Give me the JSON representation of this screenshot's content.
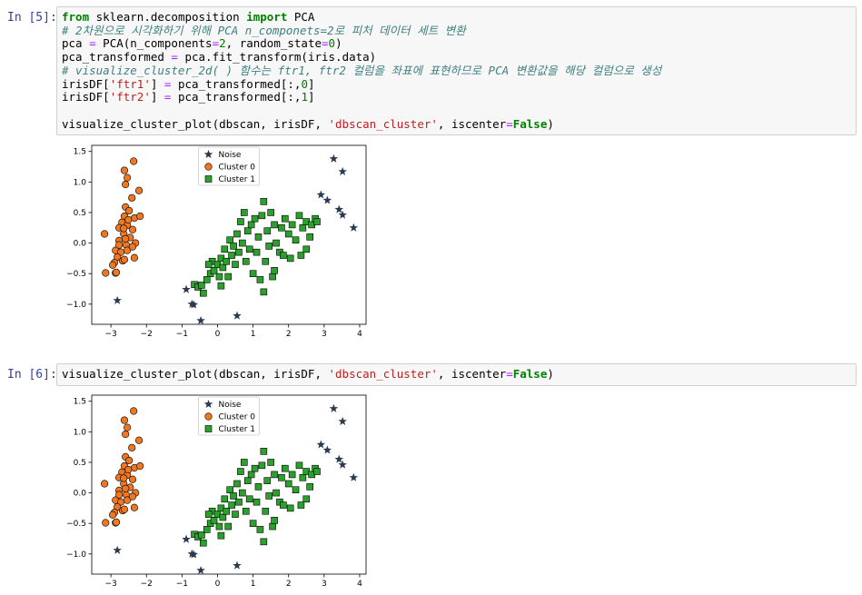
{
  "cells": [
    {
      "prompt": "In [5]:",
      "code": "from sklearn.decomposition import PCA\n# 2차원으로 시각화하기 위해 PCA n_componets=2로 피처 데이터 세트 변환\npca = PCA(n_components=2, random_state=0)\npca_transformed = pca.fit_transform(iris.data)\n# visualize_cluster_2d( ) 함수는 ftr1, ftr2 컬럼을 좌표에 표현하므로 PCA 변환값을 해당 컬럼으로 생성\nirisDF['ftr1'] = pca_transformed[:,0]\nirisDF['ftr2'] = pca_transformed[:,1]\n\nvisualize_cluster_plot(dbscan, irisDF, 'dbscan_cluster', iscenter=False)"
    },
    {
      "prompt": "In [6]:",
      "code": "visualize_cluster_plot(dbscan, irisDF, 'dbscan_cluster', iscenter=False)"
    }
  ],
  "chart_data": [
    {
      "type": "scatter",
      "legend": "upper center",
      "xlim": [
        -3.54,
        4.18
      ],
      "ylim": [
        -1.33,
        1.6
      ],
      "xticks": [
        {
          "value": -3,
          "label": "−3"
        },
        {
          "value": -2,
          "label": "−2"
        },
        {
          "value": -1,
          "label": "−1"
        },
        0,
        1,
        2,
        3,
        4
      ],
      "yticks": [
        {
          "value": -1,
          "label": "−1.0"
        },
        {
          "value": -0.5,
          "label": "−0.5"
        },
        {
          "value": 0,
          "label": "0.0"
        },
        0.5,
        {
          "value": 1,
          "label": "1.0"
        },
        1.5
      ],
      "series": [
        {
          "name": "Noise",
          "color": "#2b3a4e",
          "marker": "star",
          "x": [
            -2.82,
            -0.88,
            -0.72,
            -0.67,
            -0.47,
            0.55,
            3.27,
            3.52,
            2.91,
            3.09,
            3.42,
            3.52,
            3.83
          ],
          "values": [
            -0.94,
            -0.76,
            -1.0,
            -1.01,
            -1.27,
            -1.19,
            1.38,
            1.17,
            0.79,
            0.7,
            0.55,
            0.46,
            0.25
          ]
        },
        {
          "name": "Cluster 0",
          "color": "#ee7722",
          "marker": "circle",
          "x": [
            -2.36,
            -2.62,
            -2.54,
            -2.59,
            -2.21,
            -2.41,
            -2.59,
            -2.49,
            -2.62,
            -2.34,
            -2.18,
            -2.69,
            -2.54,
            -2.77,
            -2.39,
            -2.64,
            -2.46,
            -2.31,
            -2.77,
            -3.18,
            -2.57,
            -2.87,
            -2.72,
            -2.54,
            -2.39,
            -2.82,
            -2.67,
            -2.9,
            -2.95,
            -3.15,
            -2.87,
            -2.62,
            -2.34,
            -2.64,
            -2.51,
            -2.59,
            -2.85,
            -2.77
          ],
          "values": [
            1.34,
            1.19,
            1.07,
            0.96,
            0.86,
            0.74,
            0.59,
            0.53,
            0.44,
            0.41,
            0.44,
            0.34,
            0.29,
            0.25,
            0.22,
            0.15,
            0.09,
            0.0,
            0.04,
            0.15,
            -0.03,
            -0.12,
            -0.15,
            -0.12,
            -0.06,
            -0.23,
            -0.29,
            -0.32,
            -0.36,
            -0.49,
            -0.49,
            -0.27,
            -0.24,
            0.24,
            0.38,
            0.07,
            -0.48,
            -0.03
          ]
        },
        {
          "name": "Cluster 1",
          "color": "#2ca02c",
          "marker": "square",
          "x": [
            -0.65,
            -0.55,
            -0.45,
            -0.4,
            -0.3,
            -0.2,
            -0.15,
            -0.1,
            0.0,
            0.05,
            0.1,
            0.15,
            0.2,
            0.25,
            0.3,
            0.35,
            0.4,
            0.45,
            0.5,
            0.55,
            0.6,
            0.65,
            0.7,
            0.75,
            0.8,
            0.85,
            0.9,
            0.95,
            1.0,
            1.05,
            1.1,
            1.15,
            1.2,
            1.25,
            1.3,
            1.3,
            1.35,
            1.4,
            1.45,
            1.5,
            1.55,
            1.6,
            1.65,
            1.75,
            1.8,
            1.85,
            1.9,
            2.0,
            2.05,
            2.1,
            2.2,
            2.3,
            2.35,
            2.4,
            2.5,
            2.6,
            2.65,
            2.75,
            2.8,
            -0.25,
            0.1,
            1.6,
            2.5
          ],
          "values": [
            -0.68,
            -0.72,
            -0.69,
            -0.82,
            -0.6,
            -0.5,
            -0.3,
            -0.45,
            -0.35,
            -0.55,
            -0.25,
            -0.4,
            -0.1,
            -0.3,
            -0.55,
            0.05,
            -0.2,
            -0.05,
            -0.35,
            0.15,
            -0.15,
            0.35,
            0.0,
            0.5,
            -0.3,
            0.2,
            -0.1,
            0.3,
            -0.5,
            0.4,
            -0.15,
            0.1,
            -0.6,
            0.45,
            0.68,
            -0.8,
            -0.3,
            0.2,
            -0.05,
            0.5,
            -0.55,
            0.3,
            0.0,
            -0.15,
            0.25,
            -0.2,
            0.4,
            0.15,
            -0.25,
            0.3,
            0.05,
            0.45,
            -0.2,
            0.25,
            0.35,
            0.1,
            0.3,
            0.4,
            0.35,
            -0.35,
            -0.7,
            -0.45,
            -0.1
          ]
        }
      ]
    },
    {
      "type": "scatter",
      "legend": "upper center",
      "xlim": [
        -3.54,
        4.18
      ],
      "ylim": [
        -1.33,
        1.6
      ],
      "xticks": [
        {
          "value": -3,
          "label": "−3"
        },
        {
          "value": -2,
          "label": "−2"
        },
        {
          "value": -1,
          "label": "−1"
        },
        0,
        1,
        2,
        3,
        4
      ],
      "yticks": [
        {
          "value": -1,
          "label": "−1.0"
        },
        {
          "value": -0.5,
          "label": "−0.5"
        },
        {
          "value": 0,
          "label": "0.0"
        },
        0.5,
        {
          "value": 1,
          "label": "1.0"
        },
        1.5
      ],
      "series": [
        {
          "name": "Noise",
          "color": "#2b3a4e",
          "marker": "star",
          "x": [
            -2.82,
            -0.88,
            -0.72,
            -0.67,
            -0.47,
            0.55,
            3.27,
            3.52,
            2.91,
            3.09,
            3.42,
            3.52,
            3.83
          ],
          "values": [
            -0.94,
            -0.76,
            -1.0,
            -1.01,
            -1.27,
            -1.19,
            1.38,
            1.17,
            0.79,
            0.7,
            0.55,
            0.46,
            0.25
          ]
        },
        {
          "name": "Cluster 0",
          "color": "#ee7722",
          "marker": "circle",
          "x": [
            -2.36,
            -2.62,
            -2.54,
            -2.59,
            -2.21,
            -2.41,
            -2.59,
            -2.49,
            -2.62,
            -2.34,
            -2.18,
            -2.69,
            -2.54,
            -2.77,
            -2.39,
            -2.64,
            -2.46,
            -2.31,
            -2.77,
            -3.18,
            -2.57,
            -2.87,
            -2.72,
            -2.54,
            -2.39,
            -2.82,
            -2.67,
            -2.9,
            -2.95,
            -3.15,
            -2.87,
            -2.62,
            -2.34,
            -2.64,
            -2.51,
            -2.59,
            -2.85,
            -2.77
          ],
          "values": [
            1.34,
            1.19,
            1.07,
            0.96,
            0.86,
            0.74,
            0.59,
            0.53,
            0.44,
            0.41,
            0.44,
            0.34,
            0.29,
            0.25,
            0.22,
            0.15,
            0.09,
            0.0,
            0.04,
            0.15,
            -0.03,
            -0.12,
            -0.15,
            -0.12,
            -0.06,
            -0.23,
            -0.29,
            -0.32,
            -0.36,
            -0.49,
            -0.49,
            -0.27,
            -0.24,
            0.24,
            0.38,
            0.07,
            -0.48,
            -0.03
          ]
        },
        {
          "name": "Cluster 1",
          "color": "#2ca02c",
          "marker": "square",
          "x": [
            -0.65,
            -0.55,
            -0.45,
            -0.4,
            -0.3,
            -0.2,
            -0.15,
            -0.1,
            0.0,
            0.05,
            0.1,
            0.15,
            0.2,
            0.25,
            0.3,
            0.35,
            0.4,
            0.45,
            0.5,
            0.55,
            0.6,
            0.65,
            0.7,
            0.75,
            0.8,
            0.85,
            0.9,
            0.95,
            1.0,
            1.05,
            1.1,
            1.15,
            1.2,
            1.25,
            1.3,
            1.3,
            1.35,
            1.4,
            1.45,
            1.5,
            1.55,
            1.6,
            1.65,
            1.75,
            1.8,
            1.85,
            1.9,
            2.0,
            2.05,
            2.1,
            2.2,
            2.3,
            2.35,
            2.4,
            2.5,
            2.6,
            2.65,
            2.75,
            2.8,
            -0.25,
            0.1,
            1.6,
            2.5
          ],
          "values": [
            -0.68,
            -0.72,
            -0.69,
            -0.82,
            -0.6,
            -0.5,
            -0.3,
            -0.45,
            -0.35,
            -0.55,
            -0.25,
            -0.4,
            -0.1,
            -0.3,
            -0.55,
            0.05,
            -0.2,
            -0.05,
            -0.35,
            0.15,
            -0.15,
            0.35,
            0.0,
            0.5,
            -0.3,
            0.2,
            -0.1,
            0.3,
            -0.5,
            0.4,
            -0.15,
            0.1,
            -0.6,
            0.45,
            0.68,
            -0.8,
            -0.3,
            0.2,
            -0.05,
            0.5,
            -0.55,
            0.3,
            0.0,
            -0.15,
            0.25,
            -0.2,
            0.4,
            0.15,
            -0.25,
            0.3,
            0.05,
            0.45,
            -0.2,
            0.25,
            0.35,
            0.1,
            0.3,
            0.4,
            0.35,
            -0.35,
            -0.7,
            -0.45,
            -0.1
          ]
        }
      ]
    }
  ]
}
